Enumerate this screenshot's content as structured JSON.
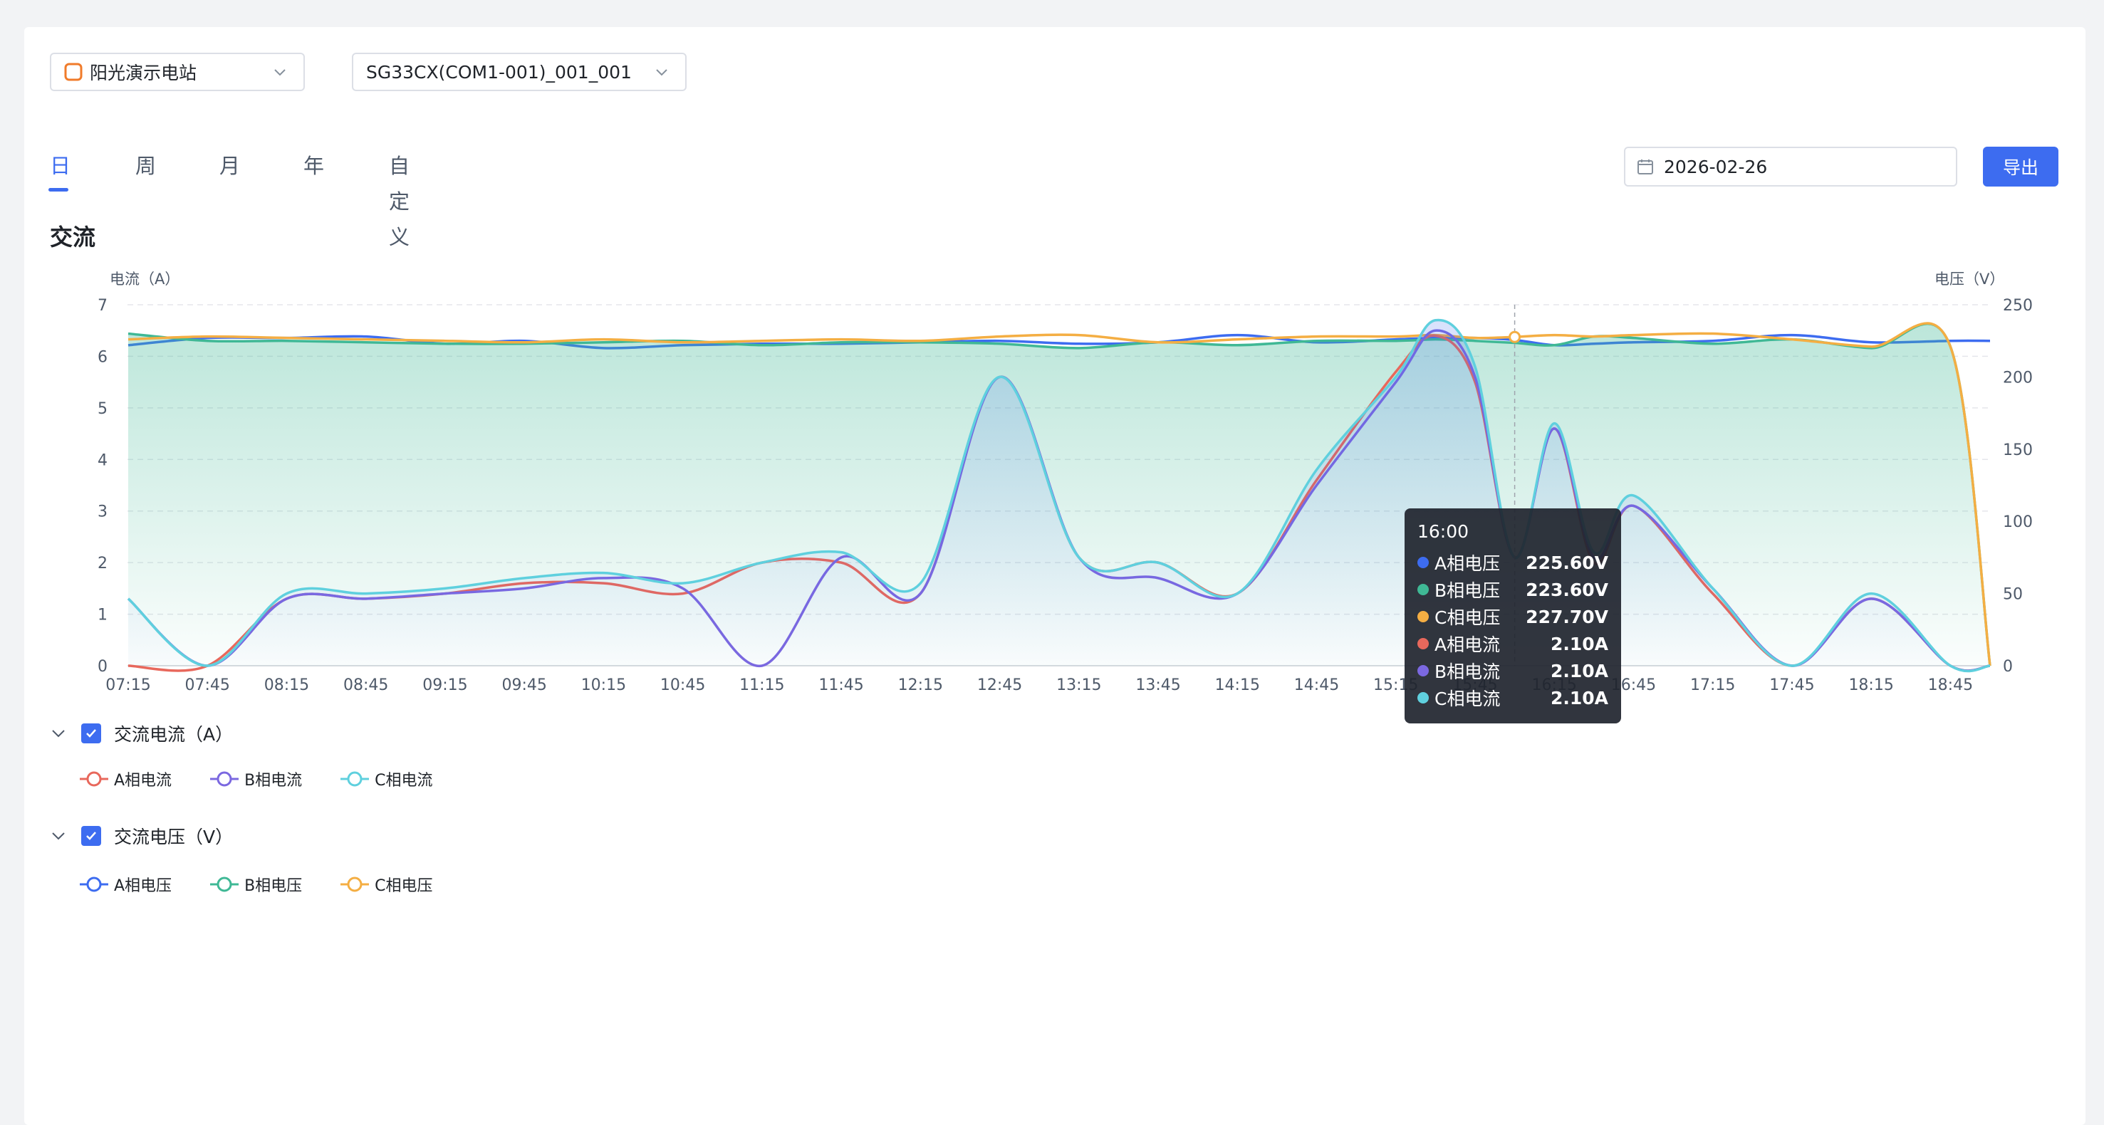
{
  "station_select": {
    "value": "阳光演示电站"
  },
  "device_select": {
    "value": "SG33CX(COM1-001)_001_001"
  },
  "tabs": [
    {
      "label": "日",
      "active": true
    },
    {
      "label": "周",
      "active": false
    },
    {
      "label": "月",
      "active": false
    },
    {
      "label": "年",
      "active": false
    },
    {
      "label": "自定义",
      "active": false
    }
  ],
  "date_picker": {
    "value": "2026-02-26",
    "icon": "calendar-icon"
  },
  "export_button": {
    "label": "导出"
  },
  "section_title": "交流",
  "colors": {
    "a_current": "#e8685c",
    "b_current": "#7b68e0",
    "c_current": "#5fd0de",
    "a_voltage": "#3d6cf0",
    "b_voltage": "#3fb895",
    "c_voltage": "#f4ae43",
    "accent": "#3d6cf0"
  },
  "chart_data": {
    "type": "line",
    "left_axis_label": "电流（A）",
    "right_axis_label": "电压（V）",
    "left_ticks": [
      "0",
      "1",
      "2",
      "3",
      "4",
      "5",
      "6",
      "7"
    ],
    "right_ticks": [
      "0",
      "50",
      "100",
      "150",
      "200",
      "250"
    ],
    "ylim_left": [
      0,
      7
    ],
    "ylim_right": [
      0,
      250
    ],
    "x_ticks": [
      "07:15",
      "07:45",
      "08:15",
      "08:45",
      "09:15",
      "09:45",
      "10:15",
      "10:45",
      "11:15",
      "11:45",
      "12:15",
      "12:45",
      "13:15",
      "13:45",
      "14:15",
      "14:45",
      "15:15",
      "15:45",
      "16:15",
      "16:45",
      "17:15",
      "17:45",
      "18:15",
      "18:45"
    ],
    "x": [
      "07:15",
      "07:45",
      "08:15",
      "08:45",
      "09:15",
      "09:45",
      "10:15",
      "10:45",
      "11:15",
      "11:45",
      "12:15",
      "12:45",
      "13:15",
      "13:45",
      "14:15",
      "14:45",
      "15:15",
      "15:30",
      "15:45",
      "16:00",
      "16:15",
      "16:30",
      "16:45",
      "17:15",
      "17:45",
      "18:15",
      "18:45",
      "19:00"
    ],
    "series": [
      {
        "name": "A相电流",
        "axis": "left",
        "values": [
          0.0,
          0.0,
          1.3,
          1.3,
          1.4,
          1.6,
          1.6,
          1.4,
          2.0,
          2.0,
          1.4,
          5.6,
          2.1,
          2.0,
          1.4,
          3.6,
          5.7,
          6.4,
          5.5,
          2.1,
          4.6,
          2.0,
          3.1,
          1.4,
          0.0,
          1.3,
          0.0,
          0.0
        ]
      },
      {
        "name": "B相电流",
        "axis": "left",
        "values": [
          1.3,
          0.0,
          1.3,
          1.3,
          1.4,
          1.5,
          1.7,
          1.5,
          0.0,
          2.1,
          1.4,
          5.6,
          2.1,
          1.7,
          1.4,
          3.5,
          5.5,
          6.5,
          5.6,
          2.1,
          4.6,
          2.1,
          3.1,
          1.5,
          0.0,
          1.3,
          0.0,
          0.0
        ]
      },
      {
        "name": "C相电流",
        "axis": "left",
        "values": [
          1.3,
          0.0,
          1.4,
          1.4,
          1.5,
          1.7,
          1.8,
          1.6,
          2.0,
          2.2,
          1.6,
          5.6,
          2.1,
          2.0,
          1.4,
          3.8,
          5.6,
          6.7,
          5.8,
          2.1,
          4.7,
          2.2,
          3.3,
          1.5,
          0.0,
          1.4,
          0.0,
          0.0
        ]
      },
      {
        "name": "A相电压",
        "axis": "right",
        "values": [
          222,
          227,
          227,
          228,
          223,
          225,
          220,
          222,
          223,
          223,
          224,
          225,
          223,
          224,
          229,
          224,
          226,
          227,
          227,
          225.6,
          222,
          223,
          224,
          225,
          229,
          224,
          225,
          225
        ]
      },
      {
        "name": "B相电压",
        "axis": "right",
        "values": [
          230,
          225,
          225,
          224,
          223,
          223,
          224,
          225,
          222,
          224,
          224,
          223,
          220,
          224,
          222,
          225,
          225,
          226,
          225,
          223.6,
          222,
          228,
          227,
          223,
          226,
          220,
          221,
          0
        ]
      },
      {
        "name": "C相电压",
        "axis": "right",
        "values": [
          226,
          228,
          227,
          226,
          225,
          224,
          226,
          224,
          225,
          226,
          225,
          228,
          229,
          224,
          226,
          228,
          228,
          229,
          227,
          227.7,
          229,
          228,
          229,
          230,
          226,
          221,
          221,
          0
        ]
      }
    ]
  },
  "tooltip": {
    "time": "16:00",
    "rows": [
      {
        "name": "A相电压",
        "value": "225.60V",
        "color": "#3d6cf0"
      },
      {
        "name": "B相电压",
        "value": "223.60V",
        "color": "#3fb895"
      },
      {
        "name": "C相电压",
        "value": "227.70V",
        "color": "#f4ae43"
      },
      {
        "name": "A相电流",
        "value": "2.10A",
        "color": "#e8685c"
      },
      {
        "name": "B相电流",
        "value": "2.10A",
        "color": "#7b68e0"
      },
      {
        "name": "C相电流",
        "value": "2.10A",
        "color": "#5fd0de"
      }
    ]
  },
  "groups": [
    {
      "label": "交流电流（A）",
      "checked": true,
      "legend": [
        "A相电流",
        "B相电流",
        "C相电流"
      ]
    },
    {
      "label": "交流电压（V）",
      "checked": true,
      "legend": [
        "A相电压",
        "B相电压",
        "C相电压"
      ]
    }
  ]
}
